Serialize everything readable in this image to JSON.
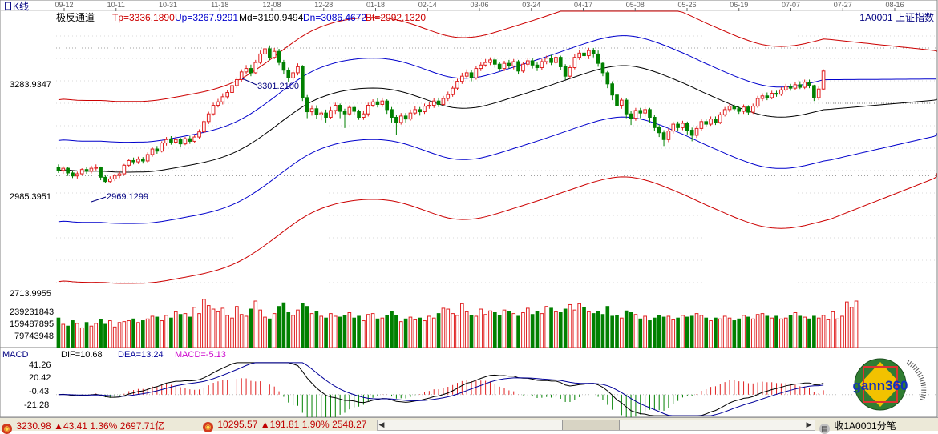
{
  "window": {
    "period_label": "日K线",
    "indicator_name": "极反通道",
    "stock_label": "1A0001 上证指数",
    "watermark_text": "gann360"
  },
  "indicator_values": {
    "tp": "Tp=3336.1890",
    "up": "Up=3267.9291",
    "md": "Md=3190.9494",
    "dn": "Dn=3086.4672",
    "bt": "Bt=2992.1320"
  },
  "price_axis": {
    "labels": [
      "3283.9347",
      "2985.3951",
      "2713.9955"
    ]
  },
  "volume_axis": {
    "labels": [
      "239231843",
      "159487895",
      "79743948"
    ]
  },
  "macd_panel": {
    "name": "MACD",
    "dif": "DIF=10.68",
    "dea": "DEA=13.24",
    "macd": "MACD=-5.13",
    "axis_labels": [
      "41.26",
      "20.42",
      "-0.43",
      "-21.28"
    ]
  },
  "annotations": {
    "high": "3301.2100",
    "low": "2969.1299"
  },
  "date_ticks": [
    "09-12",
    "10-11",
    "10-31",
    "11-18",
    "12-08",
    "12-28",
    "01-18",
    "02-14",
    "03-06",
    "03-24",
    "04-17",
    "05-08",
    "05-26",
    "06-19",
    "07-07",
    "07-27",
    "08-16"
  ],
  "status_bar": {
    "sh_value": "3230.98",
    "sh_change": "▲43.41",
    "sh_pct": "1.36%",
    "sh_amount": "2697.71亿",
    "sz_value": "10295.57",
    "sz_change": "▲191.81",
    "sz_pct": "1.90%",
    "sz_amount": "2548.27",
    "right_text": "收1A0001分笔"
  },
  "colors": {
    "up": "#e02020",
    "down": "#008000",
    "outer_band": "#cc0000",
    "inner_band": "#0000cc",
    "mid_band": "#000000",
    "dif_line": "#000000",
    "dea_line": "#000099",
    "macd_label": "#cc00cc",
    "axis_text": "#000080"
  },
  "chart_data": {
    "type": "candlestick",
    "x_start": "09-12",
    "x_end": "08-16",
    "price_ylim": [
      2713.9955,
      3336.19
    ],
    "price_axis_ticks": [
      3283.9347,
      2985.3951,
      2713.9955
    ],
    "candles": [
      {
        "o": 3005,
        "c": 2998,
        "h": 3012,
        "l": 2992
      },
      {
        "o": 2998,
        "c": 3003,
        "h": 3008,
        "l": 2990
      },
      {
        "o": 3003,
        "c": 2992,
        "h": 3006,
        "l": 2985
      },
      {
        "o": 2992,
        "c": 2985,
        "h": 2996,
        "l": 2980
      },
      {
        "o": 2985,
        "c": 2990,
        "h": 2995,
        "l": 2979
      },
      {
        "o": 2990,
        "c": 3000,
        "h": 3003,
        "l": 2986
      },
      {
        "o": 3000,
        "c": 2996,
        "h": 3006,
        "l": 2990
      },
      {
        "o": 2996,
        "c": 3003,
        "h": 3009,
        "l": 2991
      },
      {
        "o": 3003,
        "c": 3005,
        "h": 3012,
        "l": 2998
      },
      {
        "o": 3005,
        "c": 2982,
        "h": 3007,
        "l": 2975
      },
      {
        "o": 2982,
        "c": 2972,
        "h": 2986,
        "l": 2969
      },
      {
        "o": 2972,
        "c": 2978,
        "h": 2984,
        "l": 2969
      },
      {
        "o": 2978,
        "c": 2986,
        "h": 2990,
        "l": 2973
      },
      {
        "o": 2986,
        "c": 2990,
        "h": 2996,
        "l": 2980
      },
      {
        "o": 2990,
        "c": 3010,
        "h": 3013,
        "l": 2986
      },
      {
        "o": 3010,
        "c": 3021,
        "h": 3025,
        "l": 3005
      },
      {
        "o": 3021,
        "c": 3018,
        "h": 3028,
        "l": 3012
      },
      {
        "o": 3018,
        "c": 3024,
        "h": 3030,
        "l": 3013
      },
      {
        "o": 3024,
        "c": 3020,
        "h": 3029,
        "l": 3014
      },
      {
        "o": 3020,
        "c": 3035,
        "h": 3040,
        "l": 3016
      },
      {
        "o": 3035,
        "c": 3048,
        "h": 3052,
        "l": 3030
      },
      {
        "o": 3048,
        "c": 3043,
        "h": 3055,
        "l": 3037
      },
      {
        "o": 3043,
        "c": 3062,
        "h": 3066,
        "l": 3040
      },
      {
        "o": 3062,
        "c": 3070,
        "h": 3076,
        "l": 3056
      },
      {
        "o": 3070,
        "c": 3064,
        "h": 3078,
        "l": 3058
      },
      {
        "o": 3064,
        "c": 3070,
        "h": 3078,
        "l": 3060
      },
      {
        "o": 3070,
        "c": 3060,
        "h": 3074,
        "l": 3053
      },
      {
        "o": 3060,
        "c": 3072,
        "h": 3076,
        "l": 3057
      },
      {
        "o": 3072,
        "c": 3066,
        "h": 3078,
        "l": 3060
      },
      {
        "o": 3066,
        "c": 3076,
        "h": 3082,
        "l": 3062
      },
      {
        "o": 3076,
        "c": 3088,
        "h": 3094,
        "l": 3072
      },
      {
        "o": 3088,
        "c": 3112,
        "h": 3116,
        "l": 3084
      },
      {
        "o": 3112,
        "c": 3130,
        "h": 3135,
        "l": 3106
      },
      {
        "o": 3130,
        "c": 3150,
        "h": 3156,
        "l": 3126
      },
      {
        "o": 3150,
        "c": 3158,
        "h": 3165,
        "l": 3145
      },
      {
        "o": 3158,
        "c": 3170,
        "h": 3178,
        "l": 3152
      },
      {
        "o": 3170,
        "c": 3180,
        "h": 3186,
        "l": 3165
      },
      {
        "o": 3180,
        "c": 3196,
        "h": 3202,
        "l": 3176
      },
      {
        "o": 3196,
        "c": 3210,
        "h": 3216,
        "l": 3190
      },
      {
        "o": 3210,
        "c": 3228,
        "h": 3234,
        "l": 3205
      },
      {
        "o": 3228,
        "c": 3236,
        "h": 3244,
        "l": 3222
      },
      {
        "o": 3236,
        "c": 3226,
        "h": 3245,
        "l": 3218
      },
      {
        "o": 3226,
        "c": 3250,
        "h": 3256,
        "l": 3222
      },
      {
        "o": 3250,
        "c": 3270,
        "h": 3278,
        "l": 3246
      },
      {
        "o": 3270,
        "c": 3282,
        "h": 3301,
        "l": 3266
      },
      {
        "o": 3282,
        "c": 3262,
        "h": 3290,
        "l": 3255
      },
      {
        "o": 3262,
        "c": 3276,
        "h": 3284,
        "l": 3258
      },
      {
        "o": 3276,
        "c": 3250,
        "h": 3282,
        "l": 3244
      },
      {
        "o": 3250,
        "c": 3232,
        "h": 3256,
        "l": 3222
      },
      {
        "o": 3232,
        "c": 3214,
        "h": 3238,
        "l": 3204
      },
      {
        "o": 3214,
        "c": 3226,
        "h": 3232,
        "l": 3208
      },
      {
        "o": 3226,
        "c": 3240,
        "h": 3248,
        "l": 3220
      },
      {
        "o": 3240,
        "c": 3168,
        "h": 3244,
        "l": 3160
      },
      {
        "o": 3168,
        "c": 3135,
        "h": 3174,
        "l": 3120
      },
      {
        "o": 3135,
        "c": 3142,
        "h": 3150,
        "l": 3126
      },
      {
        "o": 3142,
        "c": 3128,
        "h": 3150,
        "l": 3118
      },
      {
        "o": 3128,
        "c": 3132,
        "h": 3138,
        "l": 3115
      },
      {
        "o": 3132,
        "c": 3122,
        "h": 3140,
        "l": 3110
      },
      {
        "o": 3122,
        "c": 3138,
        "h": 3146,
        "l": 3118
      },
      {
        "o": 3138,
        "c": 3150,
        "h": 3156,
        "l": 3130
      },
      {
        "o": 3150,
        "c": 3136,
        "h": 3154,
        "l": 3120
      },
      {
        "o": 3136,
        "c": 3130,
        "h": 3142,
        "l": 3097
      },
      {
        "o": 3130,
        "c": 3145,
        "h": 3150,
        "l": 3126
      },
      {
        "o": 3145,
        "c": 3136,
        "h": 3150,
        "l": 3128
      },
      {
        "o": 3136,
        "c": 3122,
        "h": 3140,
        "l": 3116
      },
      {
        "o": 3122,
        "c": 3130,
        "h": 3138,
        "l": 3116
      },
      {
        "o": 3130,
        "c": 3150,
        "h": 3156,
        "l": 3124
      },
      {
        "o": 3150,
        "c": 3158,
        "h": 3164,
        "l": 3146
      },
      {
        "o": 3158,
        "c": 3152,
        "h": 3166,
        "l": 3145
      },
      {
        "o": 3152,
        "c": 3160,
        "h": 3168,
        "l": 3146
      },
      {
        "o": 3160,
        "c": 3140,
        "h": 3164,
        "l": 3130
      },
      {
        "o": 3140,
        "c": 3122,
        "h": 3146,
        "l": 3110
      },
      {
        "o": 3122,
        "c": 3110,
        "h": 3128,
        "l": 3080
      },
      {
        "o": 3110,
        "c": 3125,
        "h": 3132,
        "l": 3105
      },
      {
        "o": 3125,
        "c": 3118,
        "h": 3132,
        "l": 3110
      },
      {
        "o": 3118,
        "c": 3132,
        "h": 3140,
        "l": 3114
      },
      {
        "o": 3132,
        "c": 3140,
        "h": 3148,
        "l": 3127
      },
      {
        "o": 3140,
        "c": 3135,
        "h": 3146,
        "l": 3126
      },
      {
        "o": 3135,
        "c": 3148,
        "h": 3154,
        "l": 3130
      },
      {
        "o": 3148,
        "c": 3150,
        "h": 3158,
        "l": 3142
      },
      {
        "o": 3150,
        "c": 3160,
        "h": 3166,
        "l": 3144
      },
      {
        "o": 3160,
        "c": 3152,
        "h": 3168,
        "l": 3146
      },
      {
        "o": 3152,
        "c": 3166,
        "h": 3172,
        "l": 3148
      },
      {
        "o": 3166,
        "c": 3175,
        "h": 3182,
        "l": 3160
      },
      {
        "o": 3175,
        "c": 3190,
        "h": 3196,
        "l": 3170
      },
      {
        "o": 3190,
        "c": 3206,
        "h": 3212,
        "l": 3186
      },
      {
        "o": 3206,
        "c": 3218,
        "h": 3226,
        "l": 3200
      },
      {
        "o": 3218,
        "c": 3226,
        "h": 3234,
        "l": 3212
      },
      {
        "o": 3226,
        "c": 3214,
        "h": 3232,
        "l": 3206
      },
      {
        "o": 3214,
        "c": 3236,
        "h": 3242,
        "l": 3210
      },
      {
        "o": 3236,
        "c": 3244,
        "h": 3250,
        "l": 3230
      },
      {
        "o": 3244,
        "c": 3250,
        "h": 3258,
        "l": 3240
      },
      {
        "o": 3250,
        "c": 3256,
        "h": 3262,
        "l": 3244
      },
      {
        "o": 3256,
        "c": 3246,
        "h": 3262,
        "l": 3238
      },
      {
        "o": 3246,
        "c": 3236,
        "h": 3252,
        "l": 3230
      },
      {
        "o": 3236,
        "c": 3248,
        "h": 3254,
        "l": 3230
      },
      {
        "o": 3248,
        "c": 3242,
        "h": 3256,
        "l": 3236
      },
      {
        "o": 3242,
        "c": 3252,
        "h": 3258,
        "l": 3234
      },
      {
        "o": 3252,
        "c": 3230,
        "h": 3256,
        "l": 3222
      },
      {
        "o": 3230,
        "c": 3246,
        "h": 3252,
        "l": 3226
      },
      {
        "o": 3246,
        "c": 3254,
        "h": 3260,
        "l": 3240
      },
      {
        "o": 3254,
        "c": 3244,
        "h": 3260,
        "l": 3236
      },
      {
        "o": 3244,
        "c": 3238,
        "h": 3250,
        "l": 3230
      },
      {
        "o": 3238,
        "c": 3252,
        "h": 3258,
        "l": 3232
      },
      {
        "o": 3252,
        "c": 3260,
        "h": 3266,
        "l": 3246
      },
      {
        "o": 3260,
        "c": 3250,
        "h": 3268,
        "l": 3244
      },
      {
        "o": 3250,
        "c": 3262,
        "h": 3270,
        "l": 3246
      },
      {
        "o": 3262,
        "c": 3240,
        "h": 3266,
        "l": 3232
      },
      {
        "o": 3240,
        "c": 3218,
        "h": 3246,
        "l": 3210
      },
      {
        "o": 3218,
        "c": 3238,
        "h": 3244,
        "l": 3212
      },
      {
        "o": 3238,
        "c": 3262,
        "h": 3270,
        "l": 3234
      },
      {
        "o": 3262,
        "c": 3272,
        "h": 3280,
        "l": 3256
      },
      {
        "o": 3272,
        "c": 3266,
        "h": 3282,
        "l": 3260
      },
      {
        "o": 3266,
        "c": 3278,
        "h": 3284,
        "l": 3258
      },
      {
        "o": 3278,
        "c": 3270,
        "h": 3284,
        "l": 3262
      },
      {
        "o": 3270,
        "c": 3248,
        "h": 3278,
        "l": 3240
      },
      {
        "o": 3248,
        "c": 3226,
        "h": 3252,
        "l": 3218
      },
      {
        "o": 3226,
        "c": 3200,
        "h": 3230,
        "l": 3190
      },
      {
        "o": 3200,
        "c": 3174,
        "h": 3206,
        "l": 3162
      },
      {
        "o": 3174,
        "c": 3150,
        "h": 3180,
        "l": 3140
      },
      {
        "o": 3150,
        "c": 3162,
        "h": 3168,
        "l": 3142
      },
      {
        "o": 3162,
        "c": 3130,
        "h": 3166,
        "l": 3120
      },
      {
        "o": 3130,
        "c": 3120,
        "h": 3136,
        "l": 3104
      },
      {
        "o": 3120,
        "c": 3138,
        "h": 3144,
        "l": 3114
      },
      {
        "o": 3138,
        "c": 3132,
        "h": 3144,
        "l": 3120
      },
      {
        "o": 3132,
        "c": 3140,
        "h": 3146,
        "l": 3124
      },
      {
        "o": 3140,
        "c": 3122,
        "h": 3144,
        "l": 3110
      },
      {
        "o": 3122,
        "c": 3098,
        "h": 3128,
        "l": 3090
      },
      {
        "o": 3098,
        "c": 3086,
        "h": 3104,
        "l": 3076
      },
      {
        "o": 3086,
        "c": 3070,
        "h": 3092,
        "l": 3055
      },
      {
        "o": 3070,
        "c": 3090,
        "h": 3096,
        "l": 3064
      },
      {
        "o": 3090,
        "c": 3106,
        "h": 3112,
        "l": 3084
      },
      {
        "o": 3106,
        "c": 3098,
        "h": 3112,
        "l": 3090
      },
      {
        "o": 3098,
        "c": 3108,
        "h": 3114,
        "l": 3092
      },
      {
        "o": 3108,
        "c": 3092,
        "h": 3112,
        "l": 3082
      },
      {
        "o": 3092,
        "c": 3080,
        "h": 3098,
        "l": 3066
      },
      {
        "o": 3080,
        "c": 3096,
        "h": 3102,
        "l": 3074
      },
      {
        "o": 3096,
        "c": 3112,
        "h": 3118,
        "l": 3090
      },
      {
        "o": 3112,
        "c": 3106,
        "h": 3118,
        "l": 3100
      },
      {
        "o": 3106,
        "c": 3118,
        "h": 3124,
        "l": 3102
      },
      {
        "o": 3118,
        "c": 3110,
        "h": 3124,
        "l": 3104
      },
      {
        "o": 3110,
        "c": 3128,
        "h": 3134,
        "l": 3106
      },
      {
        "o": 3128,
        "c": 3140,
        "h": 3146,
        "l": 3124
      },
      {
        "o": 3140,
        "c": 3148,
        "h": 3154,
        "l": 3134
      },
      {
        "o": 3148,
        "c": 3142,
        "h": 3152,
        "l": 3136
      },
      {
        "o": 3142,
        "c": 3136,
        "h": 3148,
        "l": 3130
      },
      {
        "o": 3136,
        "c": 3146,
        "h": 3152,
        "l": 3130
      },
      {
        "o": 3146,
        "c": 3134,
        "h": 3150,
        "l": 3128
      },
      {
        "o": 3134,
        "c": 3148,
        "h": 3154,
        "l": 3130
      },
      {
        "o": 3148,
        "c": 3166,
        "h": 3172,
        "l": 3144
      },
      {
        "o": 3166,
        "c": 3172,
        "h": 3178,
        "l": 3160
      },
      {
        "o": 3172,
        "c": 3168,
        "h": 3180,
        "l": 3162
      },
      {
        "o": 3168,
        "c": 3178,
        "h": 3184,
        "l": 3164
      },
      {
        "o": 3178,
        "c": 3176,
        "h": 3184,
        "l": 3170
      },
      {
        "o": 3176,
        "c": 3186,
        "h": 3192,
        "l": 3172
      },
      {
        "o": 3186,
        "c": 3194,
        "h": 3200,
        "l": 3182
      },
      {
        "o": 3194,
        "c": 3190,
        "h": 3200,
        "l": 3184
      },
      {
        "o": 3190,
        "c": 3198,
        "h": 3204,
        "l": 3186
      },
      {
        "o": 3198,
        "c": 3192,
        "h": 3206,
        "l": 3188
      },
      {
        "o": 3192,
        "c": 3204,
        "h": 3210,
        "l": 3188
      },
      {
        "o": 3204,
        "c": 3196,
        "h": 3210,
        "l": 3190
      },
      {
        "o": 3196,
        "c": 3168,
        "h": 3198,
        "l": 3160
      },
      {
        "o": 3168,
        "c": 3188,
        "h": 3194,
        "l": 3162
      },
      {
        "o": 3188,
        "c": 3230,
        "h": 3234,
        "l": 3186
      }
    ],
    "volume_axis_ticks": [
      239231843,
      159487895,
      79743948
    ],
    "volumes": [
      165,
      130,
      120,
      150,
      135,
      110,
      140,
      120,
      135,
      155,
      130,
      150,
      115,
      140,
      145,
      150,
      160,
      140,
      150,
      160,
      175,
      170,
      150,
      180,
      165,
      200,
      185,
      190,
      170,
      225,
      190,
      270,
      235,
      215,
      200,
      220,
      180,
      165,
      230,
      185,
      175,
      215,
      260,
      210,
      170,
      160,
      190,
      230,
      250,
      195,
      180,
      210,
      245,
      230,
      190,
      200,
      175,
      165,
      190,
      175,
      170,
      180,
      195,
      165,
      175,
      150,
      185,
      190,
      160,
      165,
      180,
      200,
      180,
      145,
      160,
      170,
      155,
      165,
      150,
      175,
      165,
      190,
      220,
      215,
      190,
      180,
      245,
      200,
      180,
      175,
      215,
      185,
      205,
      195,
      180,
      210,
      200,
      190,
      175,
      195,
      220,
      185,
      200,
      190,
      230,
      220,
      200,
      195,
      215,
      240,
      210,
      245,
      225,
      200,
      190,
      200,
      185,
      230,
      175,
      180,
      165,
      205,
      195,
      185,
      160,
      175,
      150,
      165,
      180,
      170,
      175,
      155,
      165,
      180,
      170,
      175,
      190,
      180,
      165,
      150,
      165,
      160,
      175,
      165,
      150,
      160,
      180,
      170,
      160,
      185,
      190,
      175,
      165,
      175,
      160,
      165,
      180,
      195,
      175,
      170,
      160,
      175,
      165,
      180,
      155,
      200,
      160,
      175,
      255,
      225,
      260
    ],
    "macd_ylim": [
      -30,
      45
    ],
    "macd_axis_ticks": [
      41.26,
      20.42,
      -0.43,
      -21.28
    ],
    "dif_last": 10.68,
    "dea_last": 13.24,
    "macd_last": -5.13
  }
}
